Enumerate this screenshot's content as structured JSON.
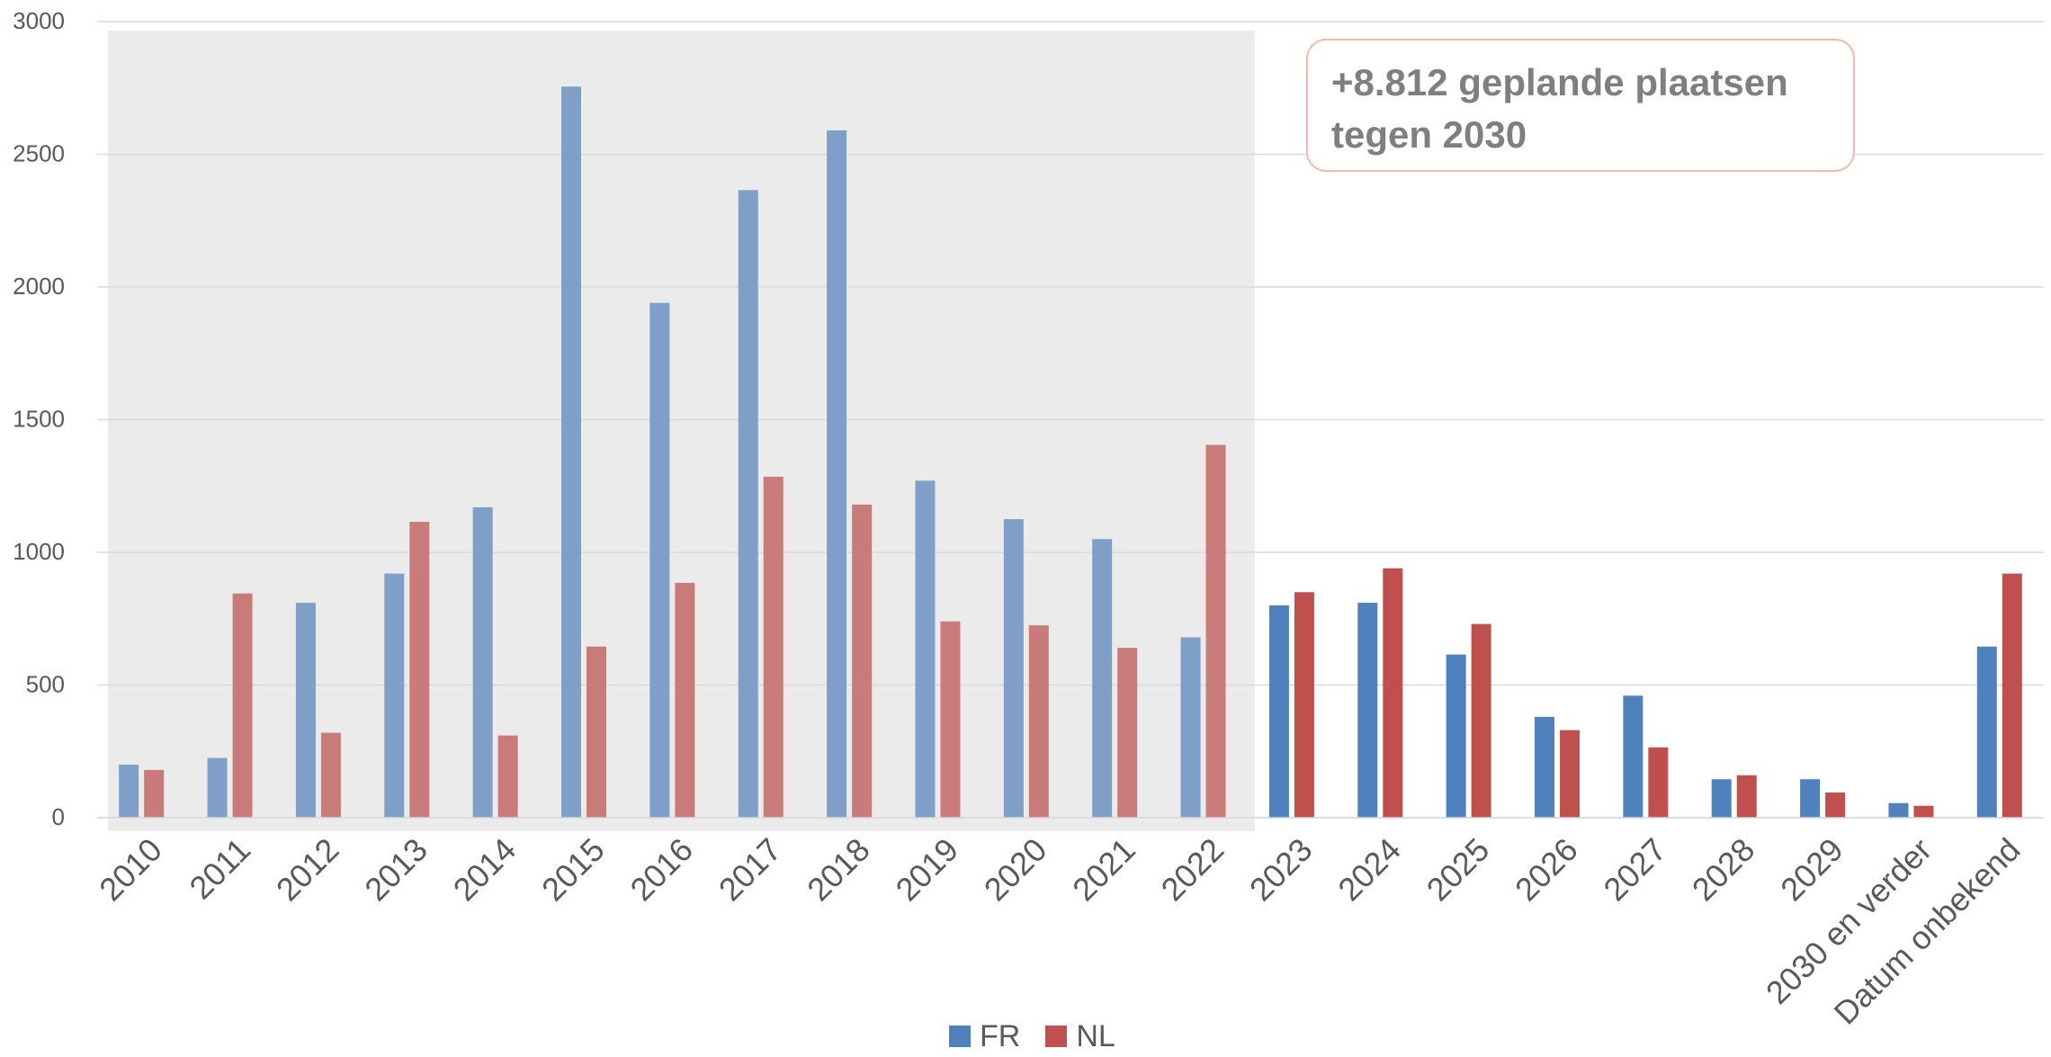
{
  "chart_data": {
    "type": "bar",
    "categories": [
      "2010",
      "2011",
      "2012",
      "2013",
      "2014",
      "2015",
      "2016",
      "2017",
      "2018",
      "2019",
      "2020",
      "2021",
      "2022",
      "2023",
      "2024",
      "2025",
      "2026",
      "2027",
      "2028",
      "2029",
      "2030 en verder",
      "Datum onbekend"
    ],
    "series": [
      {
        "name": "FR",
        "color": "#4f81bd",
        "values": [
          200,
          225,
          810,
          920,
          1170,
          2755,
          1940,
          2365,
          2590,
          1270,
          1125,
          1050,
          680,
          800,
          810,
          615,
          380,
          460,
          145,
          145,
          55,
          645
        ]
      },
      {
        "name": "NL",
        "color": "#c0504d",
        "values": [
          180,
          845,
          320,
          1115,
          310,
          645,
          885,
          1285,
          1180,
          740,
          725,
          640,
          1405,
          850,
          940,
          730,
          330,
          265,
          160,
          95,
          45,
          920
        ]
      }
    ],
    "ylim": [
      0,
      3000
    ],
    "yticks": [
      0,
      500,
      1000,
      1500,
      2000,
      2500,
      3000
    ],
    "grid": true,
    "legend_position": "bottom",
    "highlighted_past_range": [
      "2010",
      "2022"
    ],
    "highlight_color": "#ebebeb",
    "annotation": "+8.812 geplande plaatsen tegen 2030"
  },
  "annotation": {
    "line1": "+8.812 geplande plaatsen",
    "line2": "tegen 2030"
  },
  "legend": [
    {
      "label": "FR",
      "color": "#4f81bd"
    },
    {
      "label": "NL",
      "color": "#c0504d"
    }
  ]
}
